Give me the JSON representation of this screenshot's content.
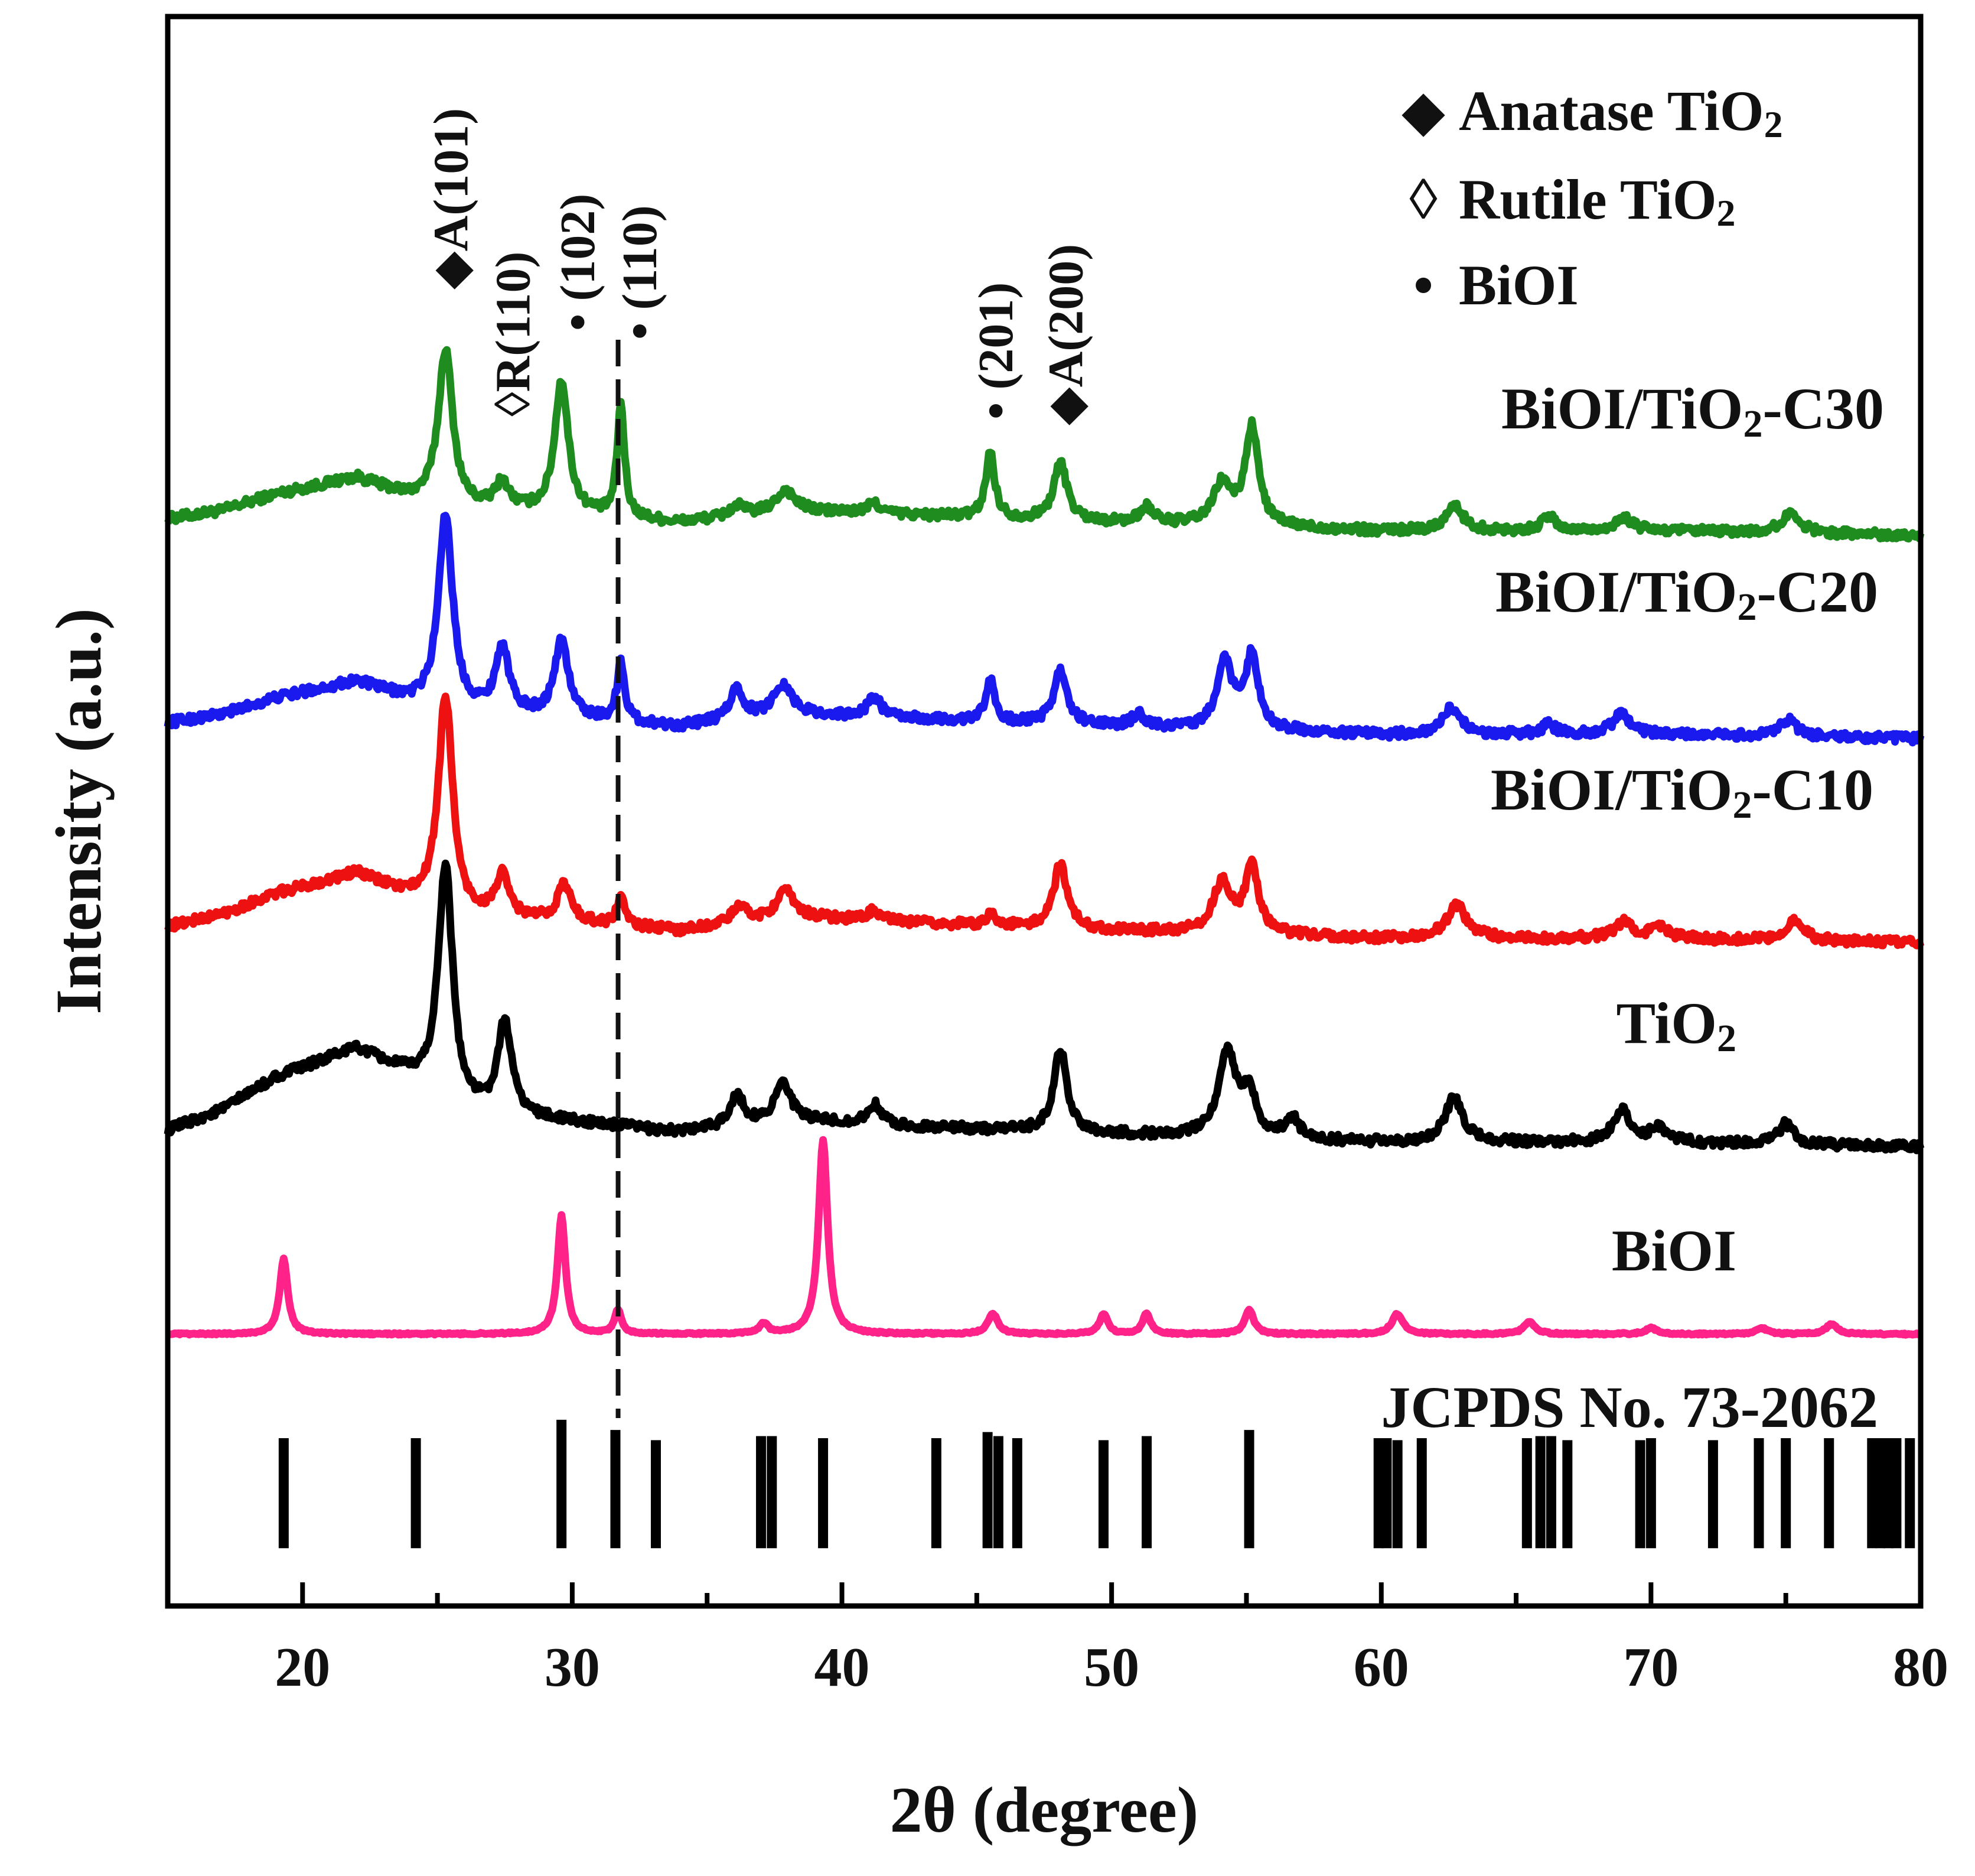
{
  "chart_data": {
    "type": "line",
    "title": "",
    "xlabel": "2θ (degree)",
    "ylabel": "Intensity (a.u.)",
    "xlim": [
      15,
      80
    ],
    "x_ticks": [
      20,
      30,
      40,
      50,
      60,
      70,
      80
    ],
    "x_tick_labels": [
      "20",
      "30",
      "40",
      "50",
      "60",
      "70",
      "80"
    ],
    "y_ticks_shown": false,
    "grid": false,
    "legend": {
      "position": "top-right",
      "entries": [
        {
          "marker": "◆",
          "marker_name": "filled-diamond",
          "label_main": "Anatase TiO",
          "label_sub": "2"
        },
        {
          "marker": "◊",
          "marker_name": "open-diamond",
          "label_main": "Rutile TiO",
          "label_sub": "2"
        },
        {
          "marker": "•",
          "marker_name": "filled-circle",
          "label_main": "BiOI",
          "label_sub": ""
        }
      ]
    },
    "series": [
      {
        "name": "BiOI/TiO2-C30",
        "label_main": "BiOI/TiO",
        "label_sub": "2",
        "label_tail": "-C30",
        "color": "#1e8c1e",
        "offset": 4.0,
        "noise": 0.022,
        "baseline": [
          [
            15,
            0.0
          ],
          [
            17,
            0.04
          ],
          [
            19,
            0.12
          ],
          [
            22,
            0.2
          ],
          [
            24,
            0.1
          ],
          [
            26,
            0.05
          ],
          [
            30,
            0.02
          ],
          [
            34,
            -0.02
          ],
          [
            38,
            0.04
          ],
          [
            42,
            0.02
          ],
          [
            50,
            -0.02
          ],
          [
            60,
            -0.06
          ],
          [
            70,
            -0.06
          ],
          [
            80,
            -0.08
          ]
        ],
        "peaks": [
          {
            "pos": 25.3,
            "height": 0.76,
            "width": 0.32
          },
          {
            "pos": 27.4,
            "height": 0.13,
            "width": 0.3
          },
          {
            "pos": 29.6,
            "height": 0.65,
            "width": 0.3
          },
          {
            "pos": 31.8,
            "height": 0.55,
            "width": 0.16
          },
          {
            "pos": 36.1,
            "height": 0.05,
            "width": 0.3
          },
          {
            "pos": 37.9,
            "height": 0.1,
            "width": 0.4
          },
          {
            "pos": 41.2,
            "height": 0.05,
            "width": 0.3
          },
          {
            "pos": 45.5,
            "height": 0.32,
            "width": 0.2
          },
          {
            "pos": 48.1,
            "height": 0.28,
            "width": 0.3
          },
          {
            "pos": 51.3,
            "height": 0.08,
            "width": 0.3
          },
          {
            "pos": 54.1,
            "height": 0.2,
            "width": 0.4
          },
          {
            "pos": 55.2,
            "height": 0.48,
            "width": 0.3
          },
          {
            "pos": 62.7,
            "height": 0.12,
            "width": 0.4
          },
          {
            "pos": 66.2,
            "height": 0.07,
            "width": 0.3
          },
          {
            "pos": 69.0,
            "height": 0.06,
            "width": 0.4
          },
          {
            "pos": 75.2,
            "height": 0.1,
            "width": 0.4
          }
        ]
      },
      {
        "name": "BiOI/TiO2-C20",
        "label_main": "BiOI/TiO",
        "label_sub": "2",
        "label_tail": "-C20",
        "color": "#1a1aee",
        "offset": 3.0,
        "noise": 0.022,
        "baseline": [
          [
            15,
            0.0
          ],
          [
            17,
            0.04
          ],
          [
            19,
            0.12
          ],
          [
            22,
            0.2
          ],
          [
            24,
            0.1
          ],
          [
            26,
            0.05
          ],
          [
            30,
            0.02
          ],
          [
            34,
            -0.02
          ],
          [
            38,
            0.04
          ],
          [
            42,
            0.02
          ],
          [
            50,
            -0.02
          ],
          [
            60,
            -0.06
          ],
          [
            70,
            -0.06
          ],
          [
            80,
            -0.08
          ]
        ],
        "peaks": [
          {
            "pos": 25.3,
            "height": 0.95,
            "width": 0.32
          },
          {
            "pos": 27.4,
            "height": 0.32,
            "width": 0.3
          },
          {
            "pos": 29.6,
            "height": 0.38,
            "width": 0.3
          },
          {
            "pos": 31.8,
            "height": 0.3,
            "width": 0.16
          },
          {
            "pos": 36.1,
            "height": 0.15,
            "width": 0.3
          },
          {
            "pos": 37.8,
            "height": 0.15,
            "width": 0.4
          },
          {
            "pos": 41.2,
            "height": 0.1,
            "width": 0.3
          },
          {
            "pos": 45.5,
            "height": 0.2,
            "width": 0.2
          },
          {
            "pos": 48.1,
            "height": 0.26,
            "width": 0.3
          },
          {
            "pos": 51.0,
            "height": 0.06,
            "width": 0.3
          },
          {
            "pos": 54.2,
            "height": 0.32,
            "width": 0.35
          },
          {
            "pos": 55.2,
            "height": 0.36,
            "width": 0.3
          },
          {
            "pos": 62.6,
            "height": 0.13,
            "width": 0.4
          },
          {
            "pos": 66.2,
            "height": 0.05,
            "width": 0.3
          },
          {
            "pos": 68.9,
            "height": 0.1,
            "width": 0.4
          },
          {
            "pos": 75.1,
            "height": 0.08,
            "width": 0.4
          }
        ]
      },
      {
        "name": "BiOI/TiO2-C10",
        "label_main": "BiOI/TiO",
        "label_sub": "2",
        "label_tail": "-C10",
        "color": "#ee1111",
        "offset": 2.0,
        "noise": 0.022,
        "baseline": [
          [
            15,
            0.0
          ],
          [
            17,
            0.06
          ],
          [
            19,
            0.16
          ],
          [
            22,
            0.26
          ],
          [
            24,
            0.14
          ],
          [
            26,
            0.05
          ],
          [
            30,
            0.02
          ],
          [
            34,
            -0.02
          ],
          [
            38,
            0.05
          ],
          [
            42,
            0.02
          ],
          [
            50,
            -0.02
          ],
          [
            60,
            -0.06
          ],
          [
            70,
            -0.06
          ],
          [
            80,
            -0.08
          ]
        ],
        "peaks": [
          {
            "pos": 25.3,
            "height": 1.05,
            "width": 0.32
          },
          {
            "pos": 27.4,
            "height": 0.2,
            "width": 0.3
          },
          {
            "pos": 29.7,
            "height": 0.18,
            "width": 0.3
          },
          {
            "pos": 31.8,
            "height": 0.15,
            "width": 0.16
          },
          {
            "pos": 36.2,
            "height": 0.08,
            "width": 0.3
          },
          {
            "pos": 37.9,
            "height": 0.12,
            "width": 0.4
          },
          {
            "pos": 41.2,
            "height": 0.05,
            "width": 0.3
          },
          {
            "pos": 45.5,
            "height": 0.06,
            "width": 0.2
          },
          {
            "pos": 48.1,
            "height": 0.32,
            "width": 0.3
          },
          {
            "pos": 54.1,
            "height": 0.25,
            "width": 0.4
          },
          {
            "pos": 55.2,
            "height": 0.32,
            "width": 0.3
          },
          {
            "pos": 62.8,
            "height": 0.16,
            "width": 0.45
          },
          {
            "pos": 69.0,
            "height": 0.08,
            "width": 0.4
          },
          {
            "pos": 70.3,
            "height": 0.05,
            "width": 0.4
          },
          {
            "pos": 75.3,
            "height": 0.1,
            "width": 0.4
          }
        ]
      },
      {
        "name": "TiO2",
        "label_main": "TiO",
        "label_sub": "2",
        "label_tail": "",
        "color": "#000000",
        "offset": 1.0,
        "noise": 0.022,
        "baseline": [
          [
            15,
            0.0
          ],
          [
            17,
            0.1
          ],
          [
            19,
            0.26
          ],
          [
            22,
            0.4
          ],
          [
            24,
            0.26
          ],
          [
            26,
            0.1
          ],
          [
            30,
            0.04
          ],
          [
            34,
            -0.01
          ],
          [
            38,
            0.05
          ],
          [
            42,
            0.02
          ],
          [
            50,
            -0.02
          ],
          [
            60,
            -0.06
          ],
          [
            70,
            -0.06
          ],
          [
            80,
            -0.08
          ]
        ],
        "peaks": [
          {
            "pos": 25.3,
            "height": 1.15,
            "width": 0.32
          },
          {
            "pos": 27.5,
            "height": 0.45,
            "width": 0.3
          },
          {
            "pos": 36.1,
            "height": 0.15,
            "width": 0.3
          },
          {
            "pos": 37.8,
            "height": 0.18,
            "width": 0.35
          },
          {
            "pos": 41.2,
            "height": 0.1,
            "width": 0.3
          },
          {
            "pos": 48.1,
            "height": 0.4,
            "width": 0.3
          },
          {
            "pos": 54.3,
            "height": 0.42,
            "width": 0.4
          },
          {
            "pos": 55.1,
            "height": 0.2,
            "width": 0.3
          },
          {
            "pos": 56.7,
            "height": 0.1,
            "width": 0.3
          },
          {
            "pos": 62.7,
            "height": 0.22,
            "width": 0.4
          },
          {
            "pos": 68.9,
            "height": 0.16,
            "width": 0.35
          },
          {
            "pos": 70.3,
            "height": 0.07,
            "width": 0.4
          },
          {
            "pos": 75.0,
            "height": 0.1,
            "width": 0.35
          }
        ]
      },
      {
        "name": "BiOI",
        "label_main": "BiOI",
        "label_sub": "",
        "label_tail": "",
        "color": "#ff2288",
        "offset": 0.0,
        "noise": 0.004,
        "baseline": [
          [
            15,
            0.0
          ],
          [
            80,
            0.0
          ]
        ],
        "peaks": [
          {
            "pos": 19.3,
            "height": 0.37,
            "width": 0.18
          },
          {
            "pos": 29.6,
            "height": 0.58,
            "width": 0.18
          },
          {
            "pos": 31.7,
            "height": 0.12,
            "width": 0.15
          },
          {
            "pos": 37.1,
            "height": 0.05,
            "width": 0.18
          },
          {
            "pos": 39.3,
            "height": 0.95,
            "width": 0.2
          },
          {
            "pos": 45.6,
            "height": 0.1,
            "width": 0.22
          },
          {
            "pos": 49.7,
            "height": 0.1,
            "width": 0.18
          },
          {
            "pos": 51.3,
            "height": 0.1,
            "width": 0.18
          },
          {
            "pos": 55.1,
            "height": 0.12,
            "width": 0.2
          },
          {
            "pos": 60.6,
            "height": 0.1,
            "width": 0.25
          },
          {
            "pos": 65.5,
            "height": 0.06,
            "width": 0.25
          },
          {
            "pos": 70.0,
            "height": 0.03,
            "width": 0.25
          },
          {
            "pos": 74.1,
            "height": 0.03,
            "width": 0.25
          },
          {
            "pos": 76.7,
            "height": 0.05,
            "width": 0.25
          }
        ]
      }
    ],
    "reference": {
      "name": "JCPDS No. 73-2062",
      "label": "JCPDS No. 73-2062",
      "color": "#000000",
      "lines": [
        {
          "pos": 19.3,
          "height": 0.54
        },
        {
          "pos": 24.2,
          "height": 0.54
        },
        {
          "pos": 29.6,
          "height": 0.63
        },
        {
          "pos": 31.6,
          "height": 0.58
        },
        {
          "pos": 33.1,
          "height": 0.53
        },
        {
          "pos": 37.0,
          "height": 0.55
        },
        {
          "pos": 37.4,
          "height": 0.55
        },
        {
          "pos": 39.3,
          "height": 0.54
        },
        {
          "pos": 43.5,
          "height": 0.54
        },
        {
          "pos": 45.4,
          "height": 0.57
        },
        {
          "pos": 45.8,
          "height": 0.55
        },
        {
          "pos": 46.5,
          "height": 0.54
        },
        {
          "pos": 49.7,
          "height": 0.53
        },
        {
          "pos": 51.3,
          "height": 0.55
        },
        {
          "pos": 55.1,
          "height": 0.58
        },
        {
          "pos": 59.9,
          "height": 0.54
        },
        {
          "pos": 60.2,
          "height": 0.54
        },
        {
          "pos": 60.6,
          "height": 0.53
        },
        {
          "pos": 61.5,
          "height": 0.54
        },
        {
          "pos": 65.4,
          "height": 0.54
        },
        {
          "pos": 65.9,
          "height": 0.55
        },
        {
          "pos": 66.3,
          "height": 0.55
        },
        {
          "pos": 66.9,
          "height": 0.53
        },
        {
          "pos": 69.6,
          "height": 0.53
        },
        {
          "pos": 70.0,
          "height": 0.54
        },
        {
          "pos": 72.3,
          "height": 0.53
        },
        {
          "pos": 74.0,
          "height": 0.54
        },
        {
          "pos": 75.0,
          "height": 0.54
        },
        {
          "pos": 76.6,
          "height": 0.54
        },
        {
          "pos": 78.2,
          "height": 0.54
        },
        {
          "pos": 78.5,
          "height": 0.54
        },
        {
          "pos": 78.8,
          "height": 0.54
        },
        {
          "pos": 79.1,
          "height": 0.54
        },
        {
          "pos": 79.6,
          "height": 0.54
        }
      ]
    },
    "annotations": [
      {
        "marker": "◆",
        "marker_name": "filled-diamond",
        "text": "A(101)",
        "x": 25.5
      },
      {
        "marker": "◊",
        "marker_name": "open-diamond",
        "text": "R(110)",
        "x": 27.8
      },
      {
        "marker": "•",
        "marker_name": "filled-circle",
        "text": "(102)",
        "x": 30.2
      },
      {
        "marker": "•",
        "marker_name": "filled-circle",
        "text": "(110)",
        "x": 32.5
      },
      {
        "marker": "•",
        "marker_name": "filled-circle",
        "text": "(201)",
        "x": 45.7
      },
      {
        "marker": "◆",
        "marker_name": "filled-diamond",
        "text": "A(200)",
        "x": 48.3
      }
    ],
    "dashed_reference_line": {
      "x": 31.7
    }
  }
}
